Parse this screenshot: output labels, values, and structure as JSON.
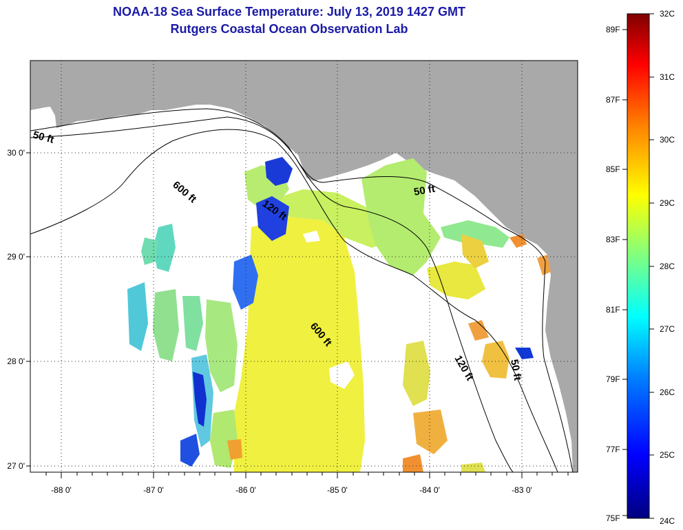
{
  "header": {
    "title": "NOAA-18 Sea Surface Temperature:  July 13, 2019 1427 GMT",
    "subtitle": "Rutgers Coastal Ocean Observation Lab"
  },
  "map": {
    "lon_range": [
      -88.3,
      -82.45
    ],
    "lat_range": [
      26.98,
      30.9
    ],
    "lon_ticks": [
      "-88 0'",
      "-87 0'",
      "-86 0'",
      "-85 0'",
      "-84 0'",
      "-83 0'"
    ],
    "lat_ticks": [
      "30 0'",
      "29 0'",
      "28 0'",
      "27 0'"
    ],
    "land_color": "#a9a9a9",
    "grid": "dotted",
    "contours": [
      {
        "label": "50 ft"
      },
      {
        "label": "600 ft"
      },
      {
        "label": "120 ft"
      },
      {
        "label": "50 ft"
      },
      {
        "label": "600 ft"
      },
      {
        "label": "120 ft"
      },
      {
        "label": "50 ft"
      }
    ]
  },
  "colorbar": {
    "fahrenheit": [
      "89F",
      "87F",
      "85F",
      "83F",
      "81F",
      "79F",
      "77F",
      "75F"
    ],
    "celsius": [
      "32C",
      "31C",
      "30C",
      "29C",
      "28C",
      "27C",
      "26C",
      "25C",
      "24C"
    ],
    "range_c": [
      24,
      32
    ],
    "colors": [
      "#00007f",
      "#0000ff",
      "#0080ff",
      "#00ffff",
      "#80ff80",
      "#ffff00",
      "#ff8000",
      "#ff0000",
      "#7f0000"
    ]
  }
}
